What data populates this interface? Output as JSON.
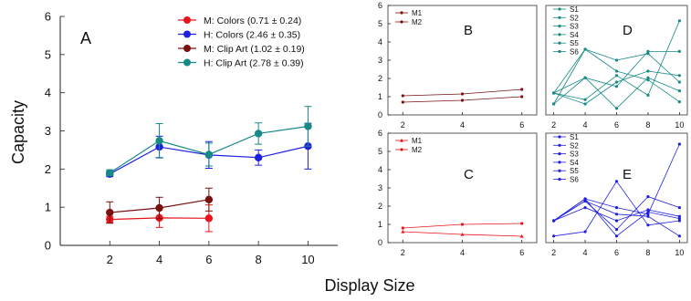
{
  "figure": {
    "xlabel": "Display Size"
  },
  "chart_data": [
    {
      "panel": "A",
      "type": "line",
      "ylabel": "Capacity",
      "xlim": [
        0,
        11.2
      ],
      "ylim": [
        0,
        6
      ],
      "x_ticks": [
        2,
        4,
        6,
        8,
        10
      ],
      "y_ticks": [
        0,
        1,
        2,
        3,
        4,
        5,
        6
      ],
      "grid": false,
      "legend_position": "top-center",
      "series": [
        {
          "name": "M: Colors (0.71 ± 0.24)",
          "color": "#e8141c",
          "marker": "circle",
          "x": [
            2,
            4,
            6
          ],
          "y": [
            0.68,
            0.72,
            0.71
          ],
          "err": [
            0.08,
            0.25,
            0.35
          ]
        },
        {
          "name": "H: Colors (2.46 ± 0.35)",
          "color": "#1f1fe0",
          "marker": "circle",
          "x": [
            2,
            4,
            6,
            8,
            10
          ],
          "y": [
            1.87,
            2.58,
            2.37,
            2.3,
            2.6
          ],
          "err": [
            0.07,
            0.28,
            0.35,
            0.2,
            0.6
          ]
        },
        {
          "name": "M: Clip Art (1.02 ± 0.19)",
          "color": "#7a1010",
          "marker": "circle",
          "x": [
            2,
            4,
            6
          ],
          "y": [
            0.86,
            0.98,
            1.2
          ],
          "err": [
            0.28,
            0.28,
            0.3
          ]
        },
        {
          "name": "H: Clip Art (2.78 ± 0.39)",
          "color": "#168a86",
          "marker": "circle",
          "x": [
            2,
            4,
            6,
            8,
            10
          ],
          "y": [
            1.9,
            2.74,
            2.38,
            2.93,
            3.12
          ],
          "err": [
            0.08,
            0.45,
            0.3,
            0.28,
            0.52
          ]
        }
      ]
    },
    {
      "panel": "B",
      "type": "line",
      "xlim": [
        1.5,
        6.5
      ],
      "ylim": [
        0,
        6
      ],
      "x_ticks": [
        2,
        4,
        6
      ],
      "y_ticks": [
        0,
        1,
        2,
        3,
        4,
        5,
        6
      ],
      "legend_position": "top-left",
      "series": [
        {
          "name": "M1",
          "color": "#7a1010",
          "x": [
            2,
            4,
            6
          ],
          "y": [
            1.05,
            1.15,
            1.4
          ]
        },
        {
          "name": "M2",
          "color": "#7a1010",
          "x": [
            2,
            4,
            6
          ],
          "y": [
            0.7,
            0.8,
            1.0
          ]
        }
      ]
    },
    {
      "panel": "C",
      "type": "line",
      "xlim": [
        1.5,
        6.5
      ],
      "ylim": [
        0,
        6
      ],
      "x_ticks": [
        2,
        4,
        6
      ],
      "y_ticks": [
        0,
        1,
        2,
        3,
        4,
        5,
        6
      ],
      "legend_position": "top-left",
      "series": [
        {
          "name": "M1",
          "color": "#e8141c",
          "marker": "triangle",
          "x": [
            2,
            4,
            6
          ],
          "y": [
            0.6,
            0.45,
            0.35
          ]
        },
        {
          "name": "M2",
          "color": "#e8141c",
          "marker": "circle",
          "x": [
            2,
            4,
            6
          ],
          "y": [
            0.8,
            1.0,
            1.05
          ]
        }
      ]
    },
    {
      "panel": "D",
      "type": "line",
      "xlim": [
        1.5,
        10.5
      ],
      "ylim": [
        1,
        6
      ],
      "x_ticks": [
        2,
        4,
        6,
        8,
        10
      ],
      "y_ticks": [],
      "legend_position": "top-left",
      "series": [
        {
          "name": "S1",
          "color": "#168a86",
          "x": [
            2,
            4,
            6,
            8,
            10
          ],
          "y": [
            2.0,
            1.5,
            2.5,
            3.0,
            2.8
          ]
        },
        {
          "name": "S2",
          "color": "#168a86",
          "x": [
            2,
            4,
            6,
            8,
            10
          ],
          "y": [
            2.0,
            4.0,
            3.5,
            3.8,
            2.5
          ]
        },
        {
          "name": "S3",
          "color": "#168a86",
          "x": [
            2,
            4,
            6,
            8,
            10
          ],
          "y": [
            1.5,
            2.7,
            1.3,
            2.7,
            2.1
          ]
        },
        {
          "name": "S4",
          "color": "#168a86",
          "x": [
            2,
            4,
            6,
            8,
            10
          ],
          "y": [
            2.0,
            2.7,
            2.3,
            3.9,
            3.9
          ]
        },
        {
          "name": "S5",
          "color": "#168a86",
          "x": [
            2,
            4,
            6,
            8,
            10
          ],
          "y": [
            2.0,
            1.7,
            2.8,
            1.9,
            5.3
          ]
        },
        {
          "name": "S6",
          "color": "#168a86",
          "x": [
            2,
            4,
            6,
            8,
            10
          ],
          "y": [
            1.5,
            4.0,
            3.0,
            2.6,
            1.6
          ]
        }
      ]
    },
    {
      "panel": "E",
      "type": "line",
      "xlim": [
        1.5,
        10.5
      ],
      "ylim": [
        1,
        6
      ],
      "x_ticks": [
        2,
        4,
        6,
        8,
        10
      ],
      "y_ticks": [],
      "legend_position": "top-left",
      "series": [
        {
          "name": "S1",
          "color": "#1f1fe0",
          "x": [
            2,
            4,
            6,
            8,
            10
          ],
          "y": [
            2.0,
            3.0,
            1.3,
            2.4,
            2.1
          ]
        },
        {
          "name": "S2",
          "color": "#1f1fe0",
          "x": [
            2,
            4,
            6,
            8,
            10
          ],
          "y": [
            2.0,
            2.6,
            2.0,
            2.5,
            2.2
          ]
        },
        {
          "name": "S3",
          "color": "#1f1fe0",
          "x": [
            2,
            4,
            6,
            8,
            10
          ],
          "y": [
            1.3,
            1.5,
            3.8,
            1.8,
            2.0
          ]
        },
        {
          "name": "S4",
          "color": "#1f1fe0",
          "x": [
            2,
            4,
            6,
            8,
            10
          ],
          "y": [
            2.0,
            2.9,
            2.3,
            2.2,
            1.3
          ]
        },
        {
          "name": "S5",
          "color": "#1f1fe0",
          "x": [
            2,
            4,
            6,
            8,
            10
          ],
          "y": [
            2.0,
            2.9,
            1.6,
            3.1,
            2.6
          ]
        },
        {
          "name": "S6",
          "color": "#1f1fe0",
          "x": [
            2,
            4,
            6,
            8,
            10
          ],
          "y": [
            2.0,
            3.0,
            2.6,
            2.3,
            5.5
          ]
        }
      ]
    }
  ]
}
